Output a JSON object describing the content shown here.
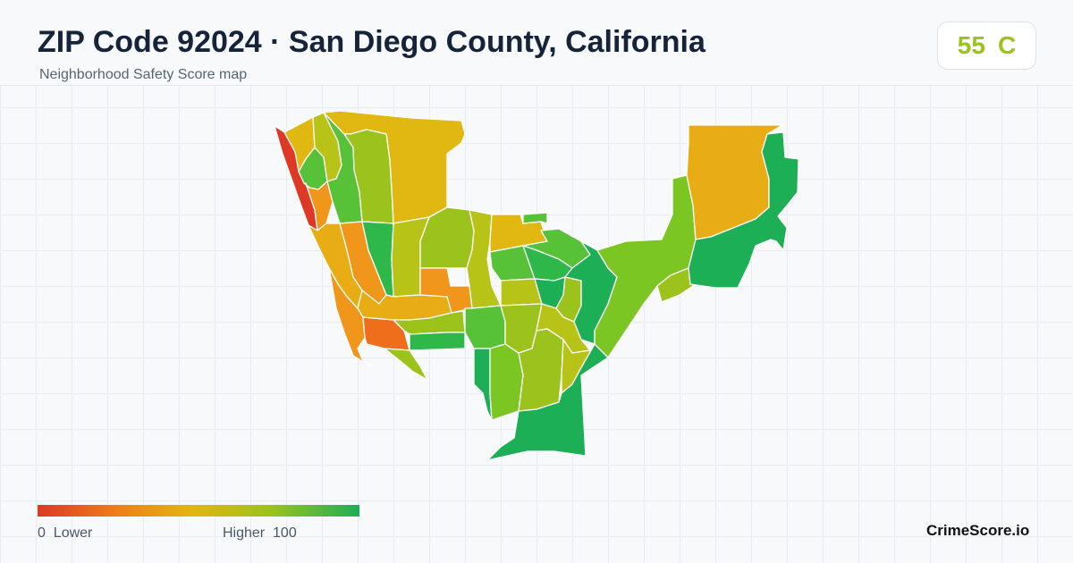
{
  "header": {
    "title": "ZIP Code 92024 · San Diego County, California",
    "subtitle": "Neighborhood Safety Score map"
  },
  "score_badge": {
    "score": "55",
    "grade": "C",
    "color": "#9ac31c"
  },
  "legend": {
    "min_value": "0",
    "min_label": "Lower",
    "max_label": "Higher",
    "max_value": "100",
    "gradient_colors": [
      "#dc3a26",
      "#ee7f1a",
      "#e3b512",
      "#9cc31c",
      "#1daf55"
    ]
  },
  "brand": "CrimeScore.io",
  "map": {
    "color_scale": {
      "red": "#dc3a26",
      "orange_red": "#ee6e1c",
      "orange": "#f0961a",
      "amber": "#e8ac14",
      "gold": "#e1b812",
      "olive": "#b8c318",
      "yellow_green": "#9cc31c",
      "lime": "#7cc623",
      "light_green": "#57c237",
      "green": "#2fb84a",
      "deep_green": "#1daf55"
    }
  }
}
